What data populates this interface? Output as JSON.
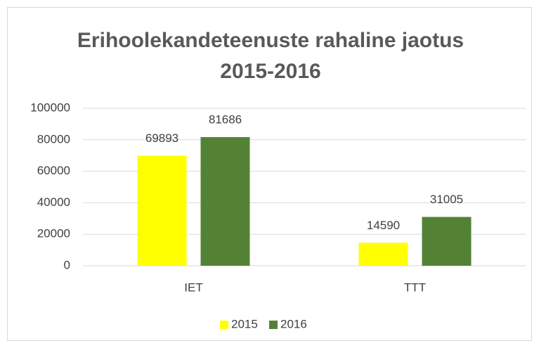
{
  "chart_data": {
    "type": "bar",
    "title": "Erihoolekandeteenuste rahaline jaotus 2015-2016",
    "categories": [
      "IET",
      "TTT"
    ],
    "series": [
      {
        "name": "2015",
        "color": "#ffff00",
        "values": [
          69893,
          14590
        ]
      },
      {
        "name": "2016",
        "color": "#548235",
        "values": [
          81686,
          31005
        ]
      }
    ],
    "ylim": [
      0,
      100000
    ],
    "yticks": [
      0,
      20000,
      40000,
      60000,
      80000,
      100000
    ],
    "grid": true,
    "legend": "bottom"
  }
}
